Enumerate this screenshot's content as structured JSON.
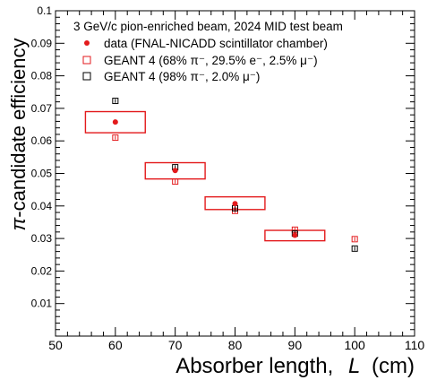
{
  "chart_data": {
    "type": "scatter",
    "title": "3 GeV/c pion-enriched beam, 2024 MID test beam",
    "xlabel": "Absorber length,",
    "xlabel_var": "L",
    "xlabel_unit": "(cm)",
    "ylabel_prefix": "π",
    "ylabel": "-candidate efficiency",
    "xlim": [
      50,
      110
    ],
    "ylim": [
      0,
      0.1
    ],
    "xticks": [
      "50",
      "60",
      "70",
      "80",
      "90",
      "100",
      "110"
    ],
    "yticks": [
      "0.01",
      "0.02",
      "0.03",
      "0.04",
      "0.05",
      "0.06",
      "0.07",
      "0.08",
      "0.09",
      "0.1"
    ],
    "legend_position": "top-left",
    "legend": [
      {
        "key": "data",
        "label": "data (FNAL-NICADD scintillator chamber)",
        "marker": "filled-circle",
        "color": "#e31a1c"
      },
      {
        "key": "g4mix",
        "label": "GEANT 4 (68% π⁻, 29.5% e⁻, 2.5% μ⁻)",
        "marker": "open-square",
        "color": "#e31a1c"
      },
      {
        "key": "g4pure",
        "label": "GEANT 4 (98% π⁻, 2.0% μ⁻)",
        "marker": "open-square",
        "color": "#000000"
      }
    ],
    "series": [
      {
        "key": "data",
        "x": [
          60,
          70,
          80,
          90
        ],
        "y": [
          0.0658,
          0.0509,
          0.0407,
          0.031
        ],
        "syst_box": [
          {
            "x0": 55,
            "x1": 65,
            "y0": 0.0625,
            "y1": 0.069
          },
          {
            "x0": 65,
            "x1": 75,
            "y0": 0.0483,
            "y1": 0.0533
          },
          {
            "x0": 75,
            "x1": 85,
            "y0": 0.0389,
            "y1": 0.0428
          },
          {
            "x0": 85,
            "x1": 95,
            "y0": 0.0293,
            "y1": 0.0325
          }
        ]
      },
      {
        "key": "g4mix",
        "x": [
          60,
          70,
          80,
          90,
          100
        ],
        "y": [
          0.061,
          0.0475,
          0.0385,
          0.0327,
          0.0298
        ],
        "err": [
          0.0006,
          0.0006,
          0.0006,
          0.0006,
          0.0006
        ]
      },
      {
        "key": "g4pure",
        "x": [
          60,
          70,
          80,
          90,
          100
        ],
        "y": [
          0.0723,
          0.0519,
          0.0393,
          0.0315,
          0.0269
        ],
        "err": [
          0.0006,
          0.0006,
          0.0006,
          0.0006,
          0.0006
        ]
      }
    ]
  }
}
